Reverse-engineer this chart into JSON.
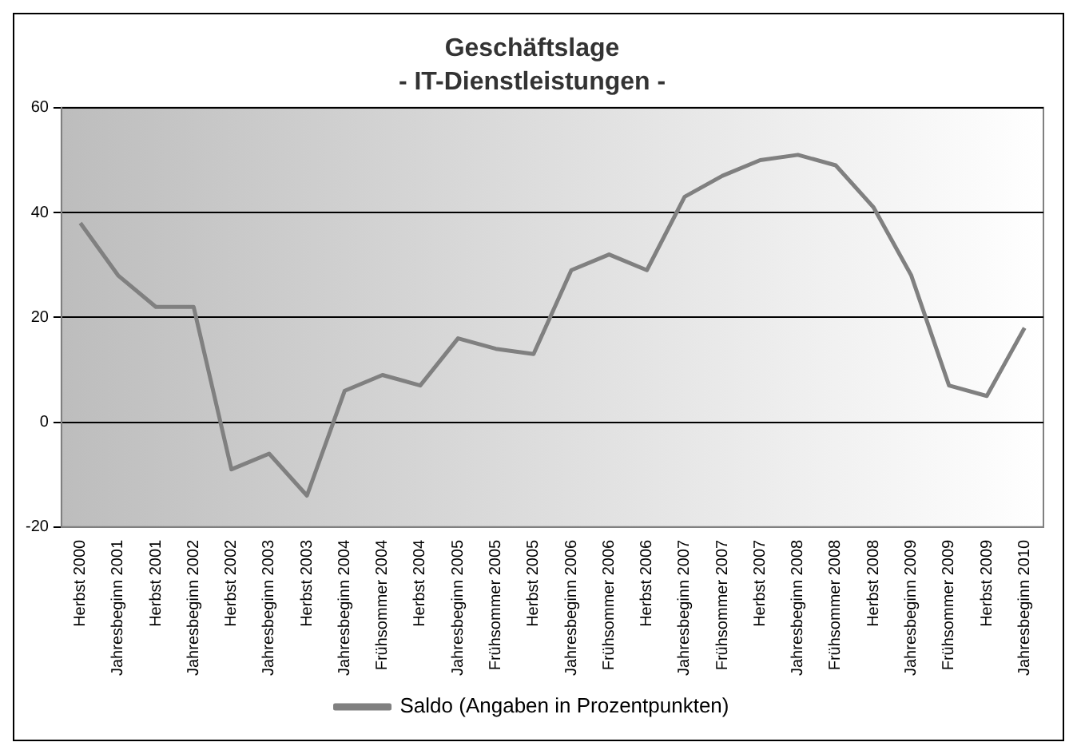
{
  "chart_data": {
    "type": "line",
    "title": "Geschäftslage",
    "subtitle": "- IT-Dienstleistungen -",
    "categories": [
      "Herbst 2000",
      "Jahresbeginn 2001",
      "Herbst 2001",
      "Jahresbeginn 2002",
      "Herbst 2002",
      "Jahresbeginn 2003",
      "Herbst 2003",
      "Jahresbeginn 2004",
      "Frühsommer 2004",
      "Herbst 2004",
      "Jahresbeginn 2005",
      "Frühsommer 2005",
      "Herbst 2005",
      "Jahresbeginn 2006",
      "Frühsommer 2006",
      "Herbst 2006",
      "Jahresbeginn 2007",
      "Frühsommer 2007",
      "Herbst 2007",
      "Jahresbeginn 2008",
      "Frühsommer 2008",
      "Herbst 2008",
      "Jahresbeginn 2009",
      "Frühsommer 2009",
      "Herbst 2009",
      "Jahresbeginn 2010"
    ],
    "series": [
      {
        "name": "Saldo (Angaben in Prozentpunkten)",
        "color": "#808080",
        "values": [
          38,
          28,
          22,
          22,
          -9,
          -6,
          -14,
          6,
          9,
          7,
          16,
          14,
          13,
          29,
          32,
          29,
          43,
          47,
          50,
          51,
          49,
          41,
          28,
          7,
          5,
          18
        ]
      }
    ],
    "ylim": [
      -20,
      60
    ],
    "yticks": [
      -20,
      0,
      20,
      40,
      60
    ],
    "grid": "y",
    "legend": "bottom",
    "marker": "none",
    "line_style": "solid"
  }
}
